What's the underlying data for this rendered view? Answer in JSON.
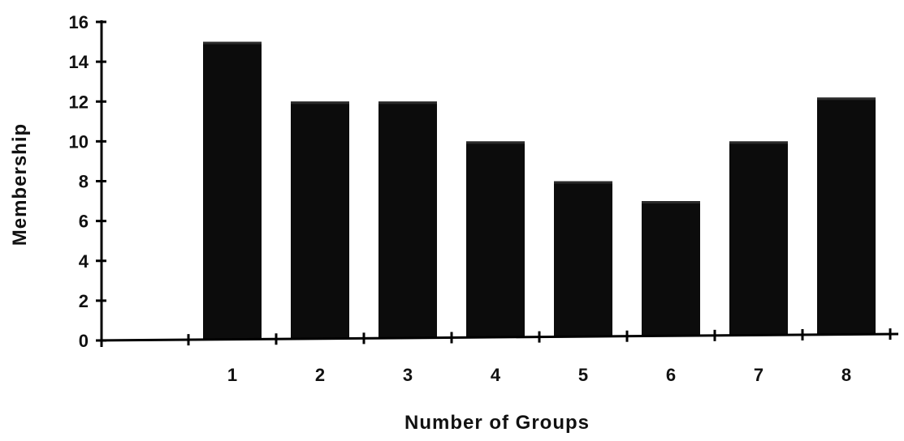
{
  "chart_data": {
    "type": "bar",
    "title": "",
    "xlabel": "Number of Groups",
    "ylabel": "Membership",
    "categories": [
      "1",
      "2",
      "3",
      "4",
      "5",
      "6",
      "7",
      "8"
    ],
    "values": [
      15,
      12,
      12,
      10,
      8,
      7,
      10,
      12.2
    ],
    "ylim": [
      0,
      16
    ],
    "yticks": [
      "0",
      "2",
      "4",
      "6",
      "8",
      "10",
      "12",
      "14",
      "16"
    ],
    "grid": false,
    "legend": "none",
    "bar_color": "#0c0c0c"
  }
}
